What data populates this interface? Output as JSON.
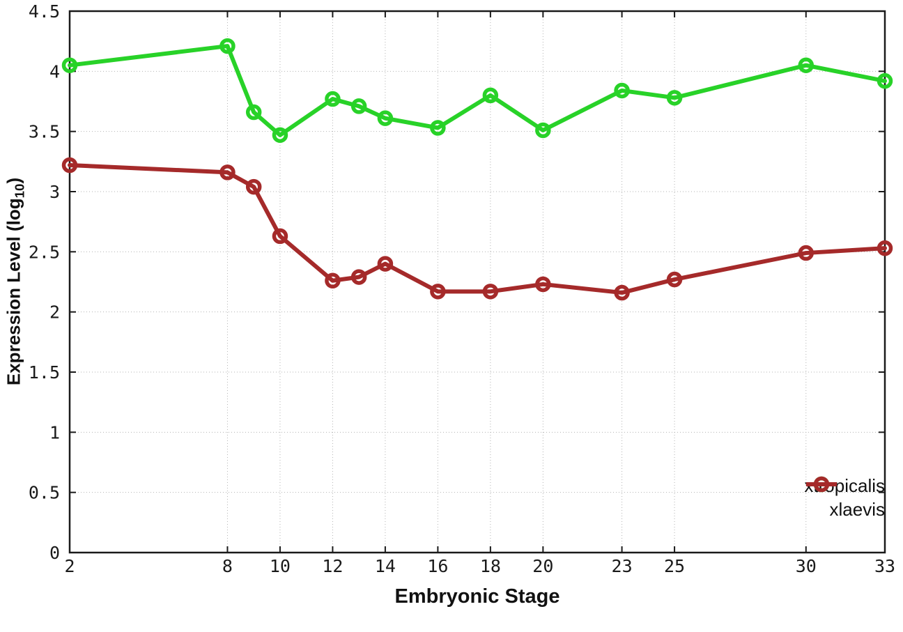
{
  "chart_data": {
    "type": "line",
    "title": "",
    "xlabel": "Embryonic Stage",
    "ylabel": "Expression Level (log10)",
    "ylabel_rich": {
      "pre": "Expression Level (log",
      "sub": "10",
      "post": ")"
    },
    "x": [
      2,
      8,
      9,
      10,
      12,
      13,
      14,
      16,
      18,
      20,
      23,
      25,
      30,
      33
    ],
    "xticks": [
      "2",
      "8",
      "10",
      "12",
      "14",
      "16",
      "18",
      "20",
      "23",
      "25",
      "30",
      "33"
    ],
    "yticks": [
      "0",
      "0.5",
      "1",
      "1.5",
      "2",
      "2.5",
      "3",
      "3.5",
      "4",
      "4.5"
    ],
    "xlim": [
      2,
      33
    ],
    "ylim": [
      0,
      4.5
    ],
    "grid": "dotted",
    "legend_position": "inside-bottom-right",
    "series": [
      {
        "name": "xtropicalis",
        "color": "#28d228",
        "values": [
          4.05,
          4.21,
          3.66,
          3.47,
          3.77,
          3.71,
          3.61,
          3.53,
          3.8,
          3.51,
          3.84,
          3.78,
          4.05,
          3.92
        ]
      },
      {
        "name": "xlaevis",
        "color": "#a52a2a",
        "values": [
          3.22,
          3.16,
          3.04,
          2.63,
          2.26,
          2.29,
          2.4,
          2.17,
          2.17,
          2.23,
          2.16,
          2.27,
          2.49,
          2.53
        ]
      }
    ],
    "colors": {
      "grid": "#b3b3b3",
      "border": "#1a1a1a",
      "text": "#111111"
    }
  }
}
